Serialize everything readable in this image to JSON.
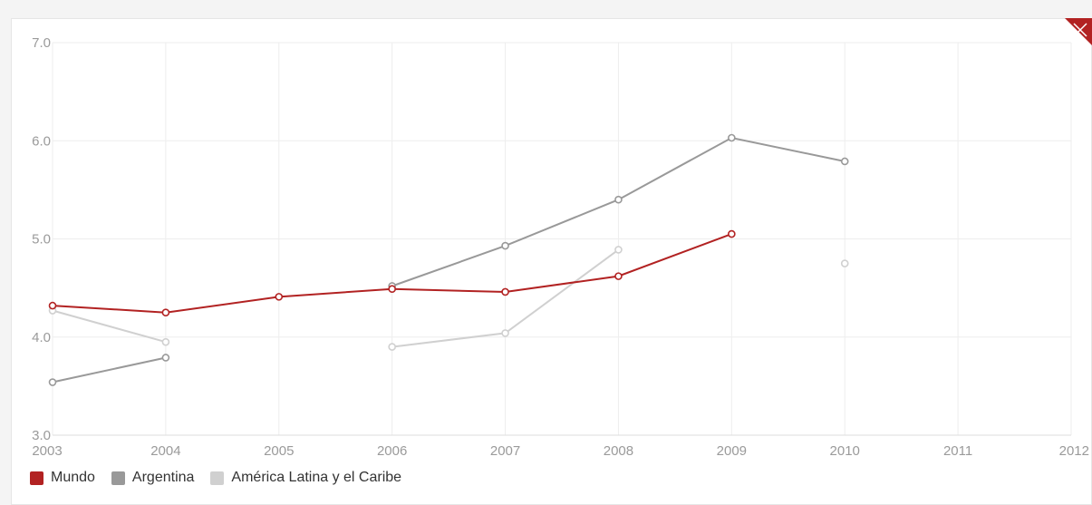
{
  "chart_data": {
    "type": "line",
    "x": [
      2003,
      2004,
      2005,
      2006,
      2007,
      2008,
      2009,
      2010,
      2011,
      2012
    ],
    "xticks": [
      "2003",
      "2004",
      "2005",
      "2006",
      "2007",
      "2008",
      "2009",
      "2010",
      "2011",
      "2012"
    ],
    "yticks": [
      "3.0",
      "4.0",
      "5.0",
      "6.0",
      "7.0"
    ],
    "ylim": [
      3.0,
      7.0
    ],
    "xlim": [
      2003,
      2012
    ],
    "grid": true,
    "legend_position": "bottom-left",
    "series": [
      {
        "name": "Mundo",
        "color": "#b22222",
        "points": [
          [
            2003,
            4.32
          ],
          [
            2004,
            4.25
          ],
          [
            2005,
            4.41
          ],
          [
            2006,
            4.49
          ],
          [
            2007,
            4.46
          ],
          [
            2008,
            4.62
          ],
          [
            2009,
            5.05
          ]
        ]
      },
      {
        "name": "Argentina",
        "color": "#999999",
        "points": [
          [
            2003,
            3.54
          ],
          [
            2004,
            3.79
          ],
          [
            2006,
            4.52
          ],
          [
            2007,
            4.93
          ],
          [
            2008,
            5.4
          ],
          [
            2009,
            6.03
          ],
          [
            2010,
            5.79
          ]
        ]
      },
      {
        "name": "América Latina y el Caribe",
        "color": "#d0d0d0",
        "points": [
          [
            2003,
            4.27
          ],
          [
            2004,
            3.95
          ],
          [
            2006,
            3.9
          ],
          [
            2007,
            4.04
          ],
          [
            2008,
            4.89
          ],
          [
            2010,
            4.75
          ]
        ]
      }
    ]
  },
  "colors": {
    "grid": "#eeeeee",
    "badge": "#b22222"
  }
}
